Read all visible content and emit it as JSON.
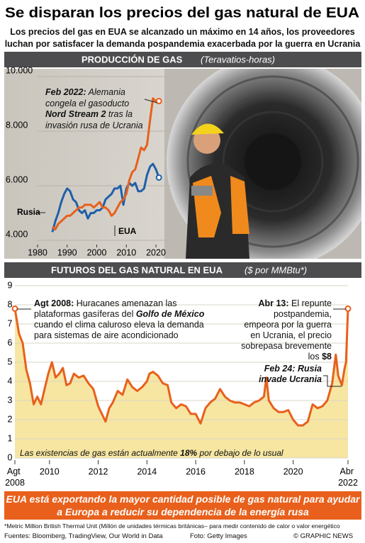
{
  "header": {
    "title": "Se disparan los precios del gas natural de EUA",
    "subtitle": "Los precios del gas en EUA se alcanzado un máximo en 14 años, los proveedores luchan por satisfacer la demanda pospandemia exacerbada por la guerra en Ucrania"
  },
  "chart_data": [
    {
      "type": "line",
      "title": "PRODUCCIÓN DE GAS",
      "subtitle": "(Teravatios-horas)",
      "x": [
        1985,
        1986,
        1987,
        1988,
        1989,
        1990,
        1991,
        1992,
        1993,
        1994,
        1995,
        1996,
        1997,
        1998,
        1999,
        2000,
        2001,
        2002,
        2003,
        2004,
        2005,
        2006,
        2007,
        2008,
        2009,
        2010,
        2011,
        2012,
        2013,
        2014,
        2015,
        2016,
        2017,
        2018,
        2019,
        2020,
        2021
      ],
      "series": [
        {
          "name": "Rusia",
          "color": "#1f5fa8",
          "values": [
            4300,
            4700,
            5000,
            5400,
            5700,
            5900,
            5800,
            5500,
            5400,
            5100,
            5000,
            5100,
            4800,
            5000,
            5000,
            5100,
            5100,
            5200,
            5500,
            5600,
            5700,
            5900,
            5900,
            6000,
            5300,
            5900,
            6100,
            6000,
            6100,
            5800,
            5800,
            5900,
            6400,
            6700,
            6800,
            6600,
            6300
          ]
        },
        {
          "name": "EUA",
          "color": "#e8601c",
          "values": [
            4500,
            4400,
            4600,
            4700,
            4800,
            4900,
            4900,
            5000,
            5100,
            5200,
            5200,
            5300,
            5300,
            5300,
            5200,
            5300,
            5400,
            5200,
            5200,
            5100,
            4900,
            5000,
            5200,
            5400,
            5500,
            5700,
            6200,
            6500,
            6600,
            7000,
            7400,
            7300,
            7500,
            8400,
            9200,
            9100,
            9100
          ]
        }
      ],
      "xlim": [
        1975,
        2025
      ],
      "xticks": [
        1980,
        1990,
        2000,
        2010,
        2020
      ],
      "ylim": [
        4000,
        10000
      ],
      "yticks": [
        {
          "value": 4000,
          "label": "4.000"
        },
        {
          "value": 6000,
          "label": "6.000"
        },
        {
          "value": 8000,
          "label": "8.000"
        },
        {
          "value": 10000,
          "label": "10.000"
        }
      ],
      "grid": true,
      "annotations": [
        [
          "Feb 2022:",
          " Alemania congela el gasoducto ",
          "Nord Stream 2",
          " tras la invasión rusa de Ucrania"
        ]
      ]
    },
    {
      "type": "area",
      "title": "FUTUROS DEL GAS NATURAL EN EUA",
      "subtitle": "($ por MMBtu*)",
      "color": "#e8601c",
      "fill": "#f6e6a2",
      "x": [
        2008.58,
        2008.75,
        2008.9,
        2009.05,
        2009.2,
        2009.35,
        2009.5,
        2009.65,
        2009.8,
        2009.95,
        2010.1,
        2010.25,
        2010.4,
        2010.55,
        2010.7,
        2010.85,
        2011.0,
        2011.2,
        2011.4,
        2011.6,
        2011.8,
        2012.0,
        2012.15,
        2012.3,
        2012.45,
        2012.6,
        2012.8,
        2013.0,
        2013.2,
        2013.4,
        2013.6,
        2013.8,
        2014.0,
        2014.1,
        2014.25,
        2014.45,
        2014.65,
        2014.85,
        2015.0,
        2015.2,
        2015.4,
        2015.6,
        2015.8,
        2016.0,
        2016.2,
        2016.4,
        2016.6,
        2016.8,
        2017.0,
        2017.2,
        2017.4,
        2017.6,
        2017.8,
        2018.0,
        2018.2,
        2018.4,
        2018.6,
        2018.8,
        2018.9,
        2019.0,
        2019.2,
        2019.4,
        2019.6,
        2019.8,
        2020.0,
        2020.2,
        2020.4,
        2020.6,
        2020.8,
        2021.0,
        2021.2,
        2021.4,
        2021.6,
        2021.75,
        2021.85,
        2022.0,
        2022.1,
        2022.17,
        2022.25
      ],
      "values": [
        7.8,
        6.5,
        6.0,
        4.6,
        3.9,
        2.8,
        3.2,
        2.8,
        3.6,
        4.4,
        5.0,
        4.2,
        4.4,
        4.7,
        3.8,
        3.9,
        4.4,
        4.2,
        4.3,
        3.9,
        3.6,
        2.7,
        2.3,
        1.9,
        2.6,
        2.9,
        3.5,
        3.3,
        4.1,
        3.7,
        3.5,
        3.7,
        4.0,
        4.4,
        4.5,
        4.3,
        3.9,
        3.8,
        2.9,
        2.6,
        2.8,
        2.7,
        2.3,
        2.3,
        1.8,
        2.6,
        2.9,
        3.1,
        3.6,
        3.2,
        3.0,
        2.9,
        2.9,
        2.8,
        2.7,
        2.9,
        3.0,
        3.2,
        4.2,
        3.0,
        2.6,
        2.4,
        2.4,
        2.5,
        2.0,
        1.7,
        1.7,
        1.9,
        2.8,
        2.6,
        2.7,
        3.0,
        3.9,
        5.4,
        4.3,
        3.8,
        4.6,
        5.0,
        7.8
      ],
      "xlim": [
        2008.58,
        2022.25
      ],
      "xticks": [
        {
          "value": 2008.58,
          "label": "Agt 2008"
        },
        2010,
        2012,
        2014,
        2016,
        2018,
        2020,
        {
          "value": 2022.25,
          "label": "Abr 2022"
        }
      ],
      "ylim": [
        0,
        9
      ],
      "yticks": [
        0,
        1,
        2,
        3,
        4,
        5,
        6,
        7,
        8,
        9
      ],
      "grid": true,
      "annotations": [
        [
          "Agt 2008:",
          " Huracanes amenazan las plataformas gasíferas del ",
          "Golfo de México",
          " cuando el clima caluroso eleva la demanda para sistemas de aire acondicionado"
        ],
        [
          "Abr 13:",
          " El repunte postpandemia, empeora por la guerra en Ucrania, el precio sobrepasa brevemente los ",
          "$8"
        ],
        [
          "Feb 24: Rusia invade Ucrania"
        ],
        [
          "Las existencias de gas están actualmente ",
          "18%",
          " por debajo de lo usual"
        ]
      ]
    }
  ],
  "banner": "EUA está exportando la mayor cantidad posible de gas natural para ayudar a Europa a reducir su dependencia de la energía rusa",
  "footer": {
    "note": "*Metric Million British Thermal Unit (Millón de unidades térmicas británicas– para medir contenido de calor o valor energético",
    "sources": "Fuentes: Bloomberg, TradingView, Our World in Data",
    "photo": "Foto: Getty Images",
    "credit": "© GRAPHIC NEWS"
  }
}
